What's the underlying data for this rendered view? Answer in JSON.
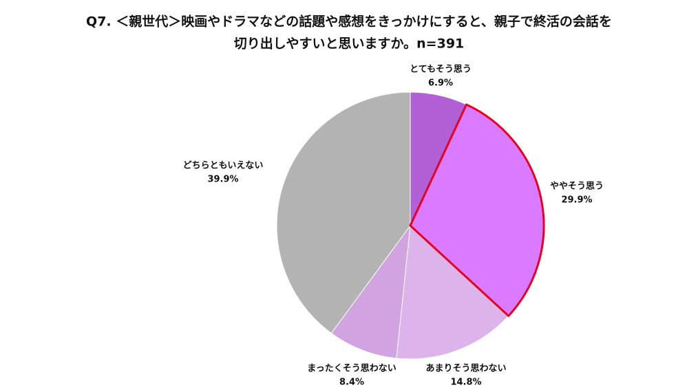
{
  "chart_data": {
    "type": "pie",
    "title": [
      "Q7. ＜親世代＞映画やドラマなどの話題や感想をきっかけにすると、親子で終活の会話を",
      "切り出しやすいと思いますか。n=391"
    ],
    "categories": [
      "とてもそう思う",
      "ややそう思う",
      "あまりそう思わない",
      "まったくそう思わない",
      "どちらともいえない"
    ],
    "values": [
      6.9,
      29.9,
      14.8,
      8.4,
      39.9
    ],
    "value_labels": [
      "6.9%",
      "29.9%",
      "14.8%",
      "8.4%",
      "39.9%"
    ],
    "colors": [
      "#b35fd6",
      "#d97aff",
      "#dcb3ea",
      "#d1a3e1",
      "#b3b3b3"
    ],
    "highlight_index": 1,
    "highlight_color": "#e8001c"
  }
}
